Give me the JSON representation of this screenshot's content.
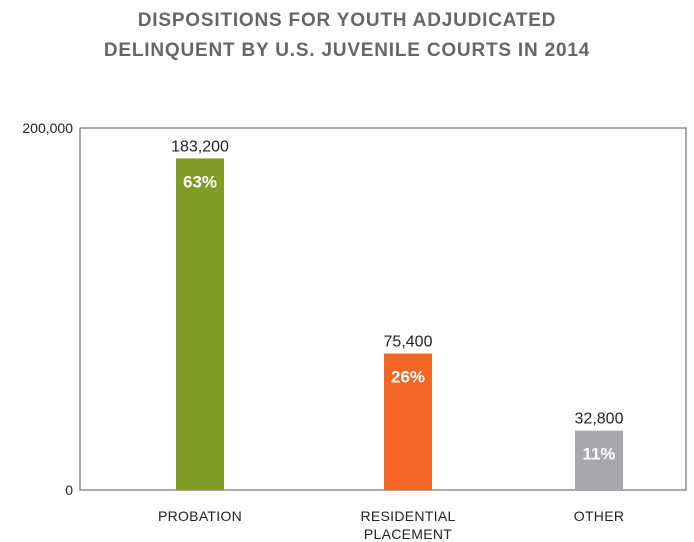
{
  "chart_data": {
    "type": "bar",
    "title_lines": [
      "DISPOSITIONS FOR YOUTH ADJUDICATED",
      "DELINQUENT BY U.S. JUVENILE COURTS IN 2014"
    ],
    "categories": [
      [
        "PROBATION"
      ],
      [
        "RESIDENTIAL",
        "PLACEMENT"
      ],
      [
        "OTHER"
      ]
    ],
    "values": [
      183200,
      75400,
      32800
    ],
    "value_labels": [
      "183,200",
      "75,400",
      "32,800"
    ],
    "percent_labels": [
      "63%",
      "26%",
      "11%"
    ],
    "colors": [
      "#7f9c24",
      "#f26522",
      "#a6a8ab"
    ],
    "ylim": [
      0,
      200000
    ],
    "yticks": [
      0,
      200000
    ],
    "ytick_labels": [
      "0",
      "200,000"
    ],
    "grid": false,
    "legend": "none"
  }
}
